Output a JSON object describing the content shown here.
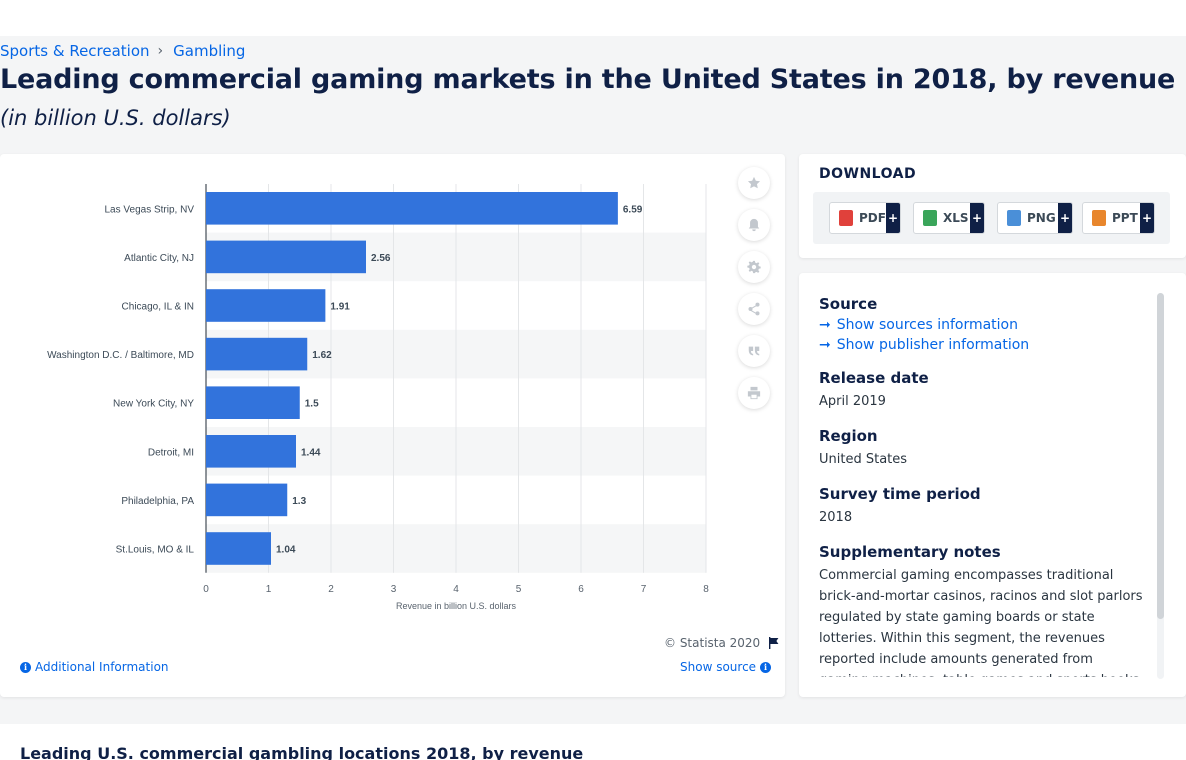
{
  "breadcrumb": {
    "parent": "Sports & Recreation",
    "current": "Gambling"
  },
  "page": {
    "title": "Leading commercial gaming markets in the United States in 2018, by revenue",
    "subtitle": "(in billion U.S. dollars)"
  },
  "chart_data": {
    "type": "bar",
    "orientation": "horizontal",
    "categories": [
      "Las Vegas Strip, NV",
      "Atlantic City, NJ",
      "Chicago, IL & IN",
      "Washington D.C. / Baltimore, MD",
      "New York City, NY",
      "Detroit, MI",
      "Philadelphia, PA",
      "St.Louis, MO & IL"
    ],
    "values": [
      6.59,
      2.56,
      1.91,
      1.62,
      1.5,
      1.44,
      1.3,
      1.04
    ],
    "value_labels": [
      "6.59",
      "2.56",
      "1.91",
      "1.62",
      "1.5",
      "1.44",
      "1.3",
      "1.04"
    ],
    "xlabel": "Revenue in billion U.S. dollars",
    "xlim": [
      0,
      8
    ],
    "xticks": [
      "0",
      "1",
      "2",
      "3",
      "4",
      "5",
      "6",
      "7",
      "8"
    ],
    "grid": true,
    "bar_color": "#3273dc"
  },
  "chart_footer": {
    "copyright": "© Statista 2020",
    "additional_info": "Additional Information",
    "show_source": "Show source"
  },
  "tools": [
    "star-icon",
    "bell-icon",
    "gear-icon",
    "share-icon",
    "quote-icon",
    "print-icon"
  ],
  "download": {
    "title": "DOWNLOAD",
    "buttons": [
      {
        "label": "PDF",
        "color": "#e0413b"
      },
      {
        "label": "XLS",
        "color": "#3aa55a"
      },
      {
        "label": "PNG",
        "color": "#4a8fd8"
      },
      {
        "label": "PPT",
        "color": "#e8862c"
      }
    ],
    "plus": "+"
  },
  "info": {
    "source_label": "Source",
    "show_sources": "Show sources information",
    "show_publisher": "Show publisher information",
    "release_label": "Release date",
    "release_value": "April 2019",
    "region_label": "Region",
    "region_value": "United States",
    "survey_label": "Survey time period",
    "survey_value": "2018",
    "notes_label": "Supplementary notes",
    "notes_value": "Commercial gaming encompasses traditional brick-and-mortar casinos, racinos and slot parlors regulated by state gaming boards or state lotteries. Within this segment, the revenues reported include amounts generated from gaming machines, table games and sports books. These numbers"
  },
  "related": {
    "title": "Leading U.S. commercial gambling locations 2018, by revenue"
  }
}
